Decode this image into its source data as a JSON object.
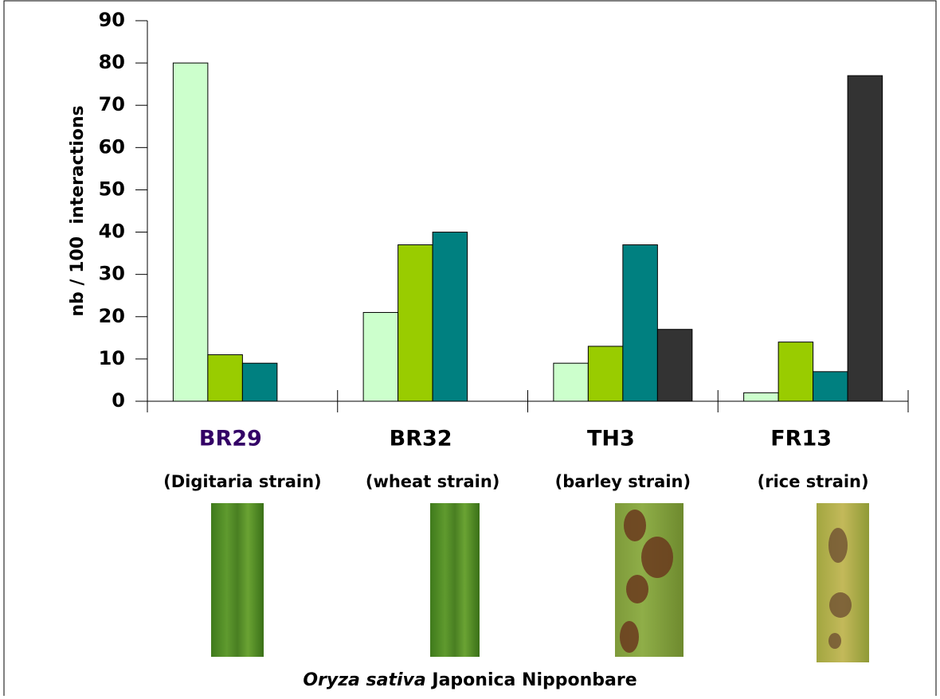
{
  "chart_data": {
    "type": "bar",
    "y_label": "nb / 100  interactions",
    "categories": [
      "BR29",
      "BR32",
      "TH3",
      "FR13"
    ],
    "category_colors": [
      "#330066",
      "#000000",
      "#000000",
      "#000000"
    ],
    "category_notes": [
      "(Digitaria strain)",
      "(wheat strain)",
      "(barley strain)",
      "(rice strain)"
    ],
    "series": [
      {
        "color": "#ccffcc",
        "values": [
          80,
          21,
          9,
          2
        ]
      },
      {
        "color": "#99cc00",
        "values": [
          11,
          37,
          13,
          14
        ]
      },
      {
        "color": "#008080",
        "values": [
          9,
          40,
          37,
          7
        ]
      },
      {
        "color": "#333333",
        "values": [
          null,
          null,
          17,
          77
        ]
      }
    ],
    "ylim": [
      0,
      90
    ],
    "yticks": [
      0,
      10,
      20,
      30,
      40,
      50,
      60,
      70,
      80,
      90
    ],
    "caption": {
      "italic": "Oryza sativa",
      "rest": " Japonica Nipponbare"
    }
  }
}
